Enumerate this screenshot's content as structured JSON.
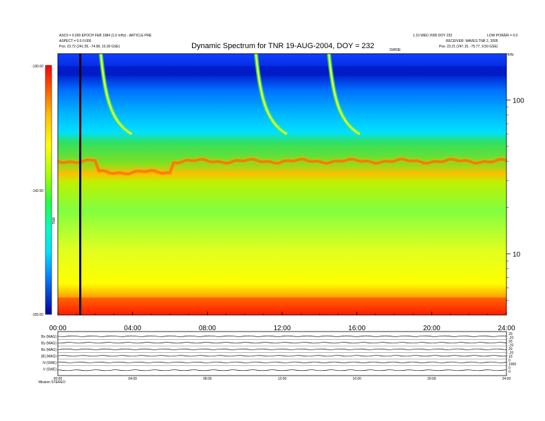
{
  "chart_data": {
    "type": "heatmap",
    "title": "Dynamic Spectrum for TNR 19-AUG-2004, DOY = 232",
    "header_left": [
      "ASCII = 0.000 EPOCH FEB 1984 (1.0 mHz) - ARTICLE PRE",
      "ASPECT = 0.0 0.000",
      "Pos:    23.72 (241.55, -74.98, 10.30 GSE)"
    ],
    "header_right": [
      "1.10 WED 2005 DOY 232",
      "LOW POWER = 0.0",
      "RECEIVER: WAVES.TNR 2, 2005",
      "Pos:    23.21 (247.15, -75.77, 9.50 GSE)"
    ],
    "header_mid_right": "SWIDE",
    "x_tick_labels": [
      "00:00",
      "04:00",
      "08:00",
      "12:00",
      "16:00",
      "20:00",
      "24:00"
    ],
    "x_range_hours": [
      0,
      24
    ],
    "y_scale": "log",
    "y_unit_label": "kHz",
    "y_tick_labels": [
      "100",
      "10"
    ],
    "y_range_khz": [
      4,
      200
    ],
    "colorbar": {
      "max_label": "-130.00",
      "mid_label": "-142.50",
      "min_label": "-155.00",
      "axis_label": "TNR",
      "colors": [
        "#0000a0",
        "#0020ff",
        "#00b0ff",
        "#00ffff",
        "#00ff80",
        "#40ff00",
        "#c0ff00",
        "#ffff00",
        "#ffa000",
        "#ff5000",
        "#ff0000"
      ]
    },
    "marker_line_hour": 1.2,
    "bands": [
      {
        "name": "strong band",
        "level": "red/orange",
        "freq_khz_approx": 40
      },
      {
        "name": "background continuum",
        "level": "green to yellow",
        "freq_khz_range_approx": [
          10,
          60
        ]
      },
      {
        "name": "low-frequency noise",
        "level": "red",
        "freq_khz_range_approx": [
          4,
          6
        ]
      }
    ],
    "type_iii_bursts_start_hours": [
      2.3,
      10.6,
      14.5
    ],
    "grid": false
  },
  "lower_panel": {
    "row_labels": [
      "Bx (MAG)",
      "By (MAG)",
      "Bz (MAG)",
      "|B| (MAG)",
      "N (SWE)",
      "V (SWE)"
    ],
    "right_labels": [
      "20",
      "-20",
      "20",
      "-20",
      "20",
      "-20",
      "10",
      "0",
      "1000",
      "0",
      "0"
    ],
    "x_tick_labels": [
      "00:00",
      "04:00",
      "08:00",
      "12:00",
      "16:00",
      "20:00",
      "24:00"
    ],
    "footer_label": "Mission   STEREO"
  }
}
